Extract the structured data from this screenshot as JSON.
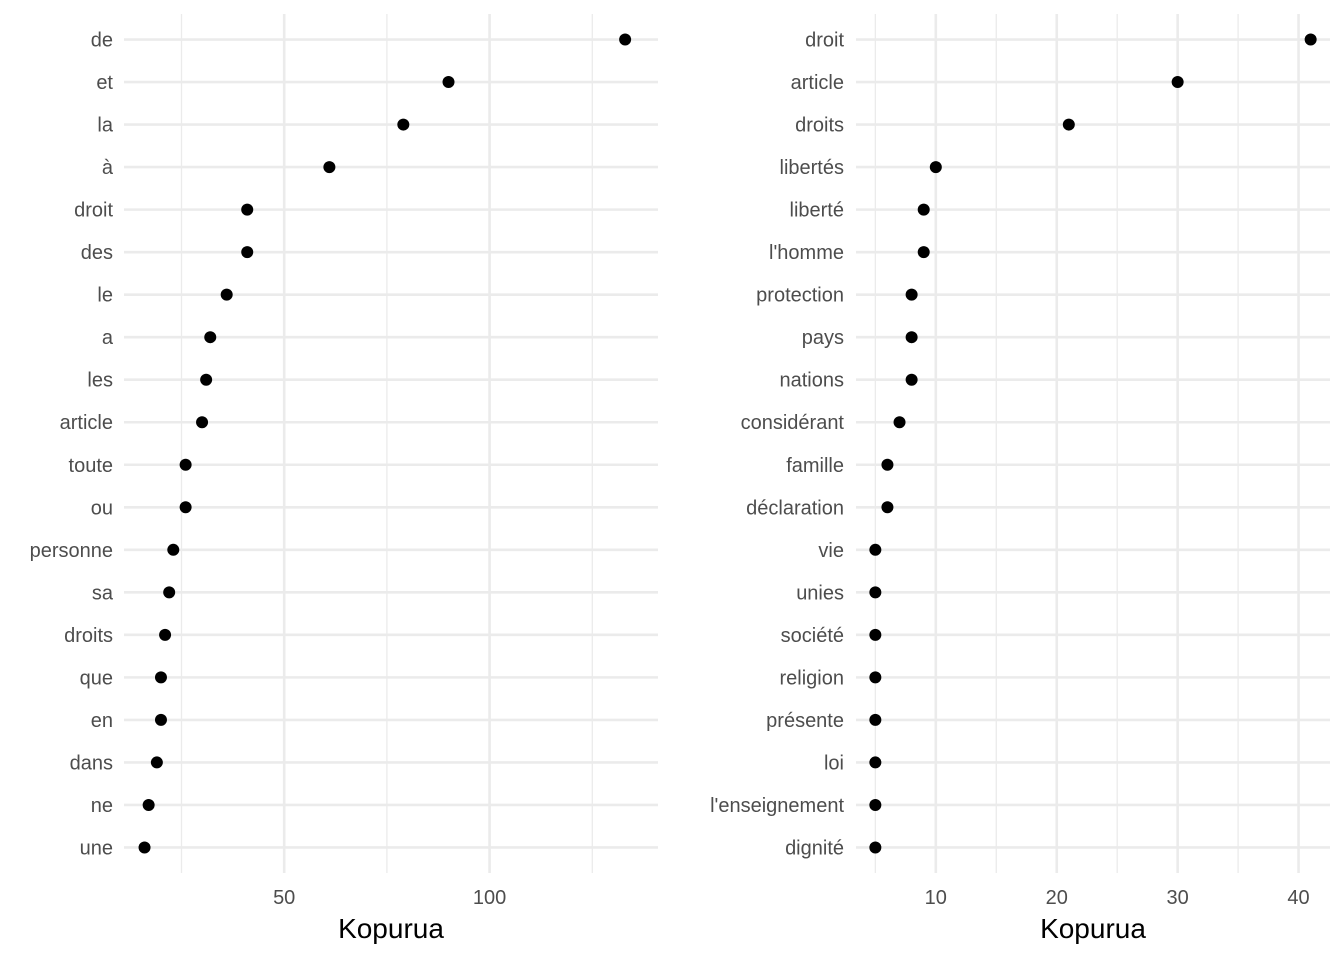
{
  "chart_data": [
    {
      "type": "scatter",
      "title": "",
      "xlabel": "Kopurua",
      "ylabel": "",
      "xlim": [
        11,
        141
      ],
      "xticks": [
        50,
        100
      ],
      "xminor": [
        25,
        75,
        125
      ],
      "grid": true,
      "legend": "none",
      "point_color": "#000000",
      "categories": [
        "de",
        "et",
        "la",
        "à",
        "droit",
        "des",
        "le",
        "a",
        "les",
        "article",
        "toute",
        "ou",
        "personne",
        "sa",
        "droits",
        "que",
        "en",
        "dans",
        "ne",
        "une"
      ],
      "values": [
        133,
        90,
        79,
        61,
        41,
        41,
        36,
        32,
        31,
        30,
        26,
        26,
        23,
        22,
        21,
        20,
        20,
        19,
        17,
        16
      ]
    },
    {
      "type": "scatter",
      "title": "",
      "xlabel": "Kopurua",
      "ylabel": "",
      "xlim": [
        3.4,
        42.6
      ],
      "xticks": [
        10,
        20,
        30,
        40
      ],
      "xminor": [
        5,
        15,
        25,
        35
      ],
      "grid": true,
      "legend": "none",
      "point_color": "#000000",
      "categories": [
        "droit",
        "article",
        "droits",
        "libertés",
        "liberté",
        "l'homme",
        "protection",
        "pays",
        "nations",
        "considérant",
        "famille",
        "déclaration",
        "vie",
        "unies",
        "société",
        "religion",
        "présente",
        "loi",
        "l'enseignement",
        "dignité"
      ],
      "values": [
        41,
        30,
        21,
        10,
        9,
        9,
        8,
        8,
        8,
        7,
        6,
        6,
        5,
        5,
        5,
        5,
        5,
        5,
        5,
        5
      ]
    }
  ]
}
